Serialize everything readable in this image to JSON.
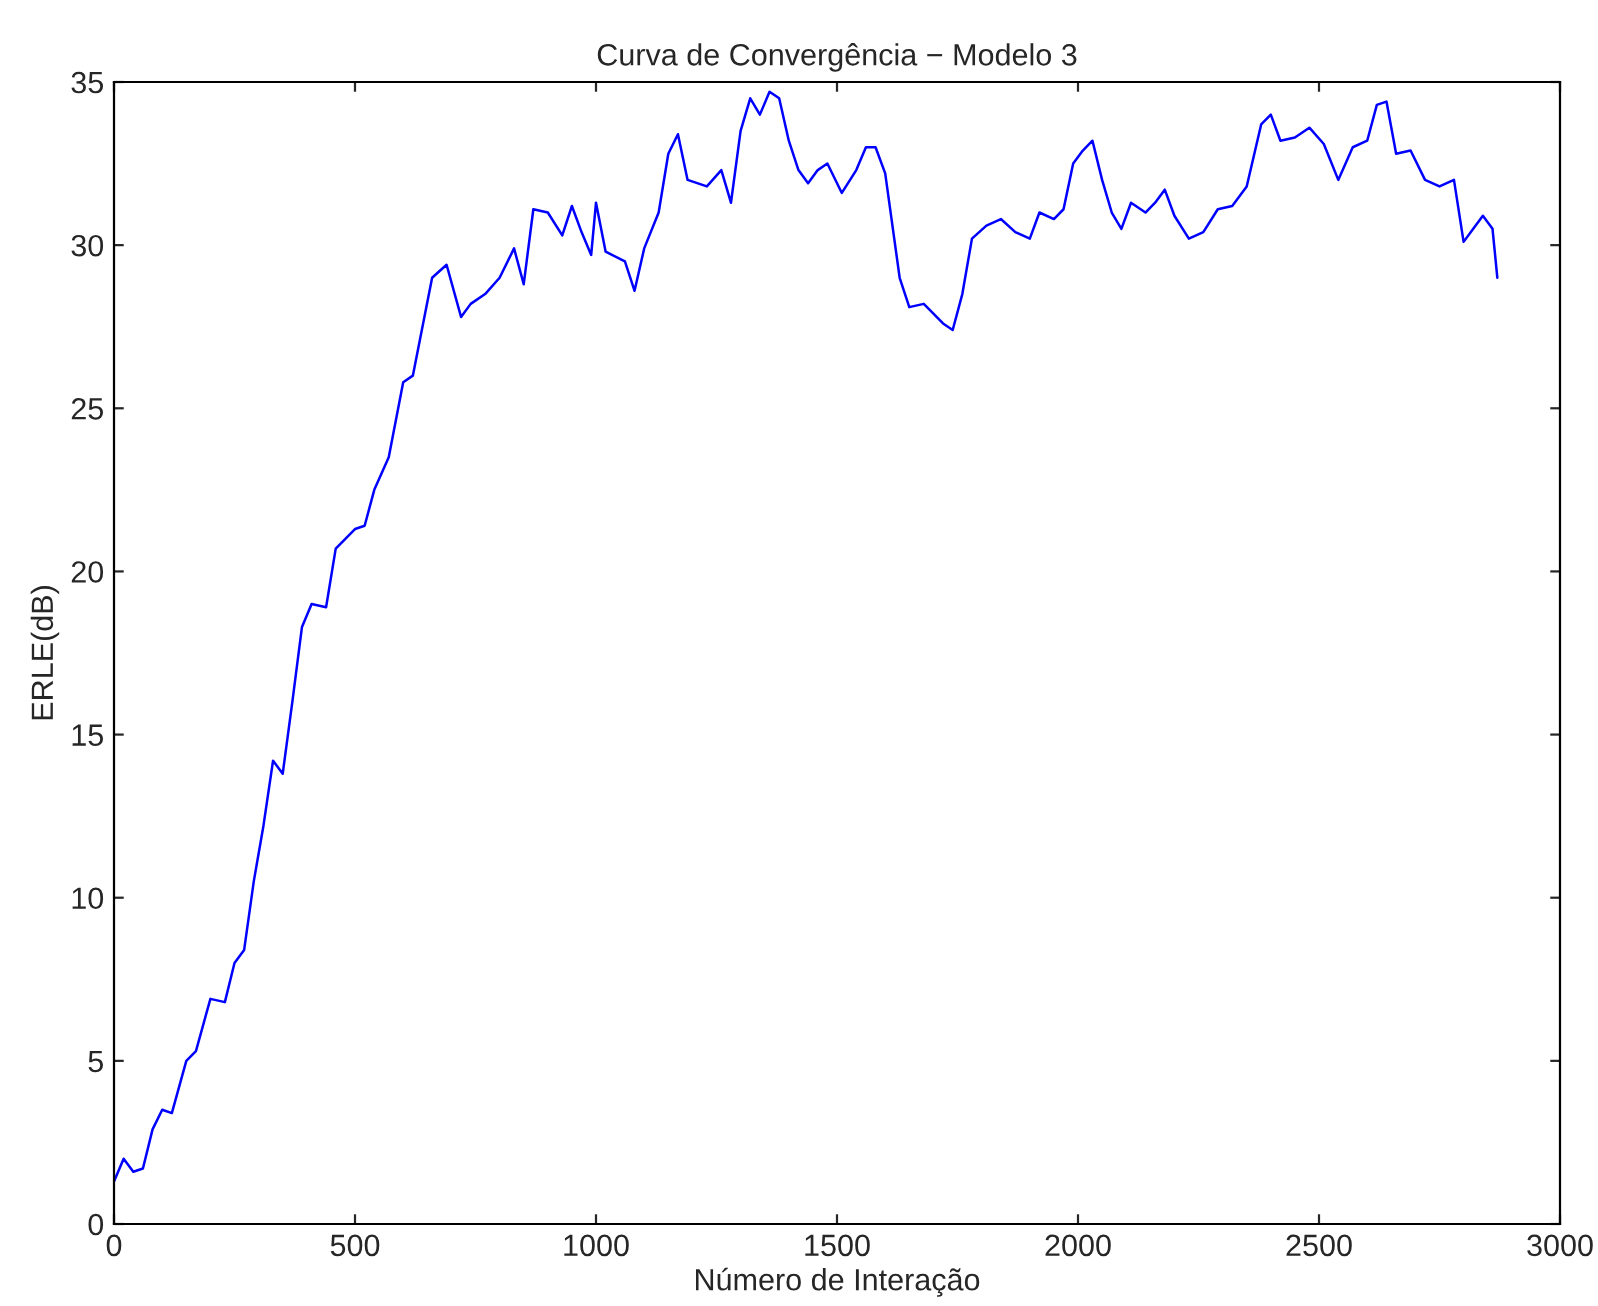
{
  "chart_data": {
    "type": "line",
    "title": "Curva de Convergência − Modelo 3",
    "xlabel": "Número de Interação",
    "ylabel": "ERLE(dB)",
    "xlim": [
      0,
      3000
    ],
    "xticks": [
      0,
      500,
      1000,
      1500,
      2000,
      2500,
      3000
    ],
    "ylim": [
      0,
      35
    ],
    "yticks": [
      0,
      5,
      10,
      15,
      20,
      25,
      30,
      35
    ],
    "grid": false,
    "legend": false,
    "series": [
      {
        "color": "#0000ff",
        "x": [
          0,
          20,
          40,
          60,
          80,
          100,
          120,
          150,
          170,
          200,
          230,
          250,
          270,
          290,
          310,
          330,
          350,
          370,
          390,
          410,
          440,
          460,
          480,
          500,
          520,
          540,
          570,
          600,
          620,
          640,
          660,
          690,
          720,
          740,
          770,
          800,
          830,
          850,
          870,
          900,
          930,
          950,
          970,
          990,
          1000,
          1020,
          1060,
          1080,
          1100,
          1130,
          1150,
          1170,
          1190,
          1210,
          1230,
          1260,
          1280,
          1300,
          1320,
          1340,
          1360,
          1380,
          1400,
          1420,
          1440,
          1460,
          1480,
          1510,
          1540,
          1560,
          1580,
          1600,
          1630,
          1650,
          1680,
          1720,
          1740,
          1760,
          1780,
          1810,
          1840,
          1870,
          1900,
          1920,
          1950,
          1970,
          1990,
          2010,
          2030,
          2050,
          2070,
          2090,
          2110,
          2140,
          2160,
          2180,
          2200,
          2230,
          2260,
          2290,
          2320,
          2350,
          2380,
          2400,
          2420,
          2450,
          2480,
          2510,
          2540,
          2570,
          2600,
          2620,
          2640,
          2660,
          2690,
          2720,
          2750,
          2780,
          2800,
          2820,
          2840,
          2860,
          2870
        ],
        "values": [
          1.3,
          2.0,
          1.6,
          1.7,
          2.9,
          3.5,
          3.4,
          5.0,
          5.3,
          6.9,
          6.8,
          8.0,
          8.4,
          10.5,
          12.2,
          14.2,
          13.8,
          16.0,
          18.3,
          19.0,
          18.9,
          20.7,
          21.0,
          21.3,
          21.4,
          22.5,
          23.5,
          25.8,
          26.0,
          27.5,
          29.0,
          29.4,
          27.8,
          28.2,
          28.5,
          29.0,
          29.9,
          28.8,
          31.1,
          31.0,
          30.3,
          31.2,
          30.4,
          29.7,
          31.3,
          29.8,
          29.5,
          28.6,
          29.9,
          31.0,
          32.8,
          33.4,
          32.0,
          31.9,
          31.8,
          32.3,
          31.3,
          33.5,
          34.5,
          34.0,
          34.7,
          34.5,
          33.2,
          32.3,
          31.9,
          32.3,
          32.5,
          31.6,
          32.3,
          33.0,
          33.0,
          32.2,
          29.0,
          28.1,
          28.2,
          27.6,
          27.4,
          28.5,
          30.2,
          30.6,
          30.8,
          30.4,
          30.2,
          31.0,
          30.8,
          31.1,
          32.5,
          32.9,
          33.2,
          32.0,
          31.0,
          30.5,
          31.3,
          31.0,
          31.3,
          31.7,
          30.9,
          30.2,
          30.4,
          31.1,
          31.2,
          31.8,
          33.7,
          34.0,
          33.2,
          33.3,
          33.6,
          33.1,
          32.0,
          33.0,
          33.2,
          34.3,
          34.4,
          32.8,
          32.9,
          32.0,
          31.8,
          32.0,
          30.1,
          30.5,
          30.9,
          30.5,
          29.0
        ]
      }
    ]
  }
}
